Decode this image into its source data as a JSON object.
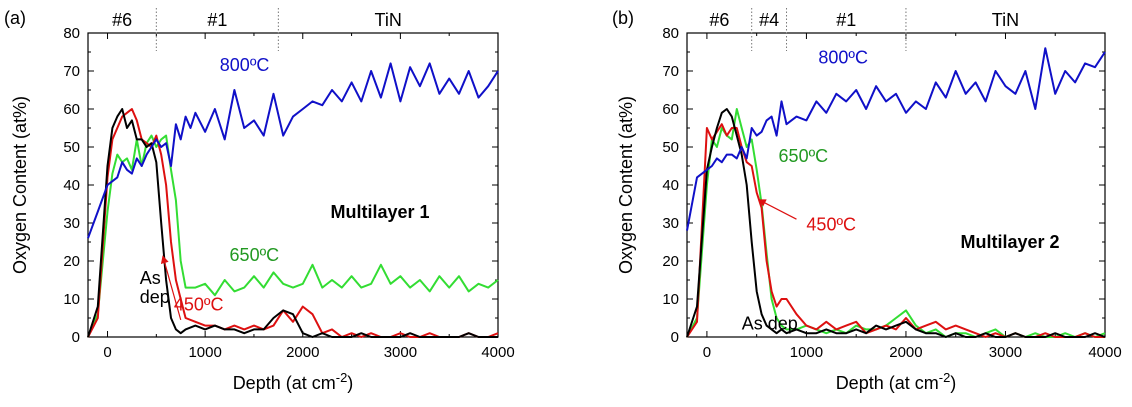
{
  "chart_data": [
    {
      "type": "line",
      "panel_label": "(a)",
      "xlabel": "Depth (at cm",
      "xlabel_sup": "-2",
      "xlabel_close": ")",
      "ylabel": "Oxygen Content (at%)",
      "xlim": [
        -200,
        4000
      ],
      "ylim": [
        0,
        80
      ],
      "xticks": [
        0,
        1000,
        2000,
        3000,
        4000
      ],
      "yticks": [
        0,
        10,
        20,
        30,
        40,
        50,
        60,
        70,
        80
      ],
      "grid": false,
      "sample_label": "Multilayer 1",
      "layers": [
        {
          "label": "#6",
          "from": -200,
          "to": 500
        },
        {
          "label": "#1",
          "from": 500,
          "to": 1750
        },
        {
          "label": "TiN",
          "from": 1750,
          "to": 4000
        }
      ],
      "series": [
        {
          "label": "800ºC",
          "color": "#1010c8",
          "label_x": 1150,
          "label_y": 70,
          "x": [
            -200,
            -100,
            0,
            50,
            100,
            150,
            200,
            250,
            300,
            350,
            400,
            450,
            500,
            550,
            600,
            650,
            700,
            750,
            800,
            850,
            900,
            1000,
            1100,
            1200,
            1300,
            1400,
            1500,
            1600,
            1700,
            1800,
            1900,
            2000,
            2100,
            2200,
            2300,
            2400,
            2500,
            2600,
            2700,
            2800,
            2900,
            3000,
            3100,
            3200,
            3300,
            3400,
            3500,
            3600,
            3700,
            3800,
            3900,
            4000
          ],
          "y": [
            26,
            33,
            40,
            41,
            42,
            46,
            44,
            43,
            47,
            45,
            48,
            50,
            52,
            50,
            51,
            45,
            56,
            52,
            58,
            55,
            59,
            54,
            60,
            52,
            65,
            55,
            57,
            53,
            64,
            53,
            58,
            60,
            62,
            61,
            65,
            62,
            67,
            62,
            70,
            63,
            72,
            62,
            71,
            66,
            72,
            64,
            68,
            64,
            70,
            63,
            66,
            70
          ]
        },
        {
          "label": "650ºC",
          "color": "#33dd33",
          "label_color": "#229922",
          "label_x": 1250,
          "label_y": 20,
          "x": [
            -200,
            -100,
            0,
            50,
            100,
            150,
            200,
            250,
            300,
            350,
            400,
            450,
            500,
            550,
            600,
            650,
            700,
            750,
            800,
            900,
            1000,
            1100,
            1200,
            1300,
            1400,
            1500,
            1600,
            1700,
            1800,
            1900,
            2000,
            2100,
            2200,
            2300,
            2400,
            2500,
            2600,
            2700,
            2800,
            2900,
            3000,
            3100,
            3200,
            3300,
            3400,
            3500,
            3600,
            3700,
            3800,
            3900,
            4000
          ],
          "y": [
            0,
            6,
            33,
            43,
            48,
            46,
            47,
            44,
            52,
            45,
            51,
            53,
            50,
            52,
            53,
            44,
            36,
            20,
            13,
            13,
            14,
            11,
            15,
            12,
            13,
            16,
            13,
            17,
            14,
            13,
            14,
            19,
            13,
            15,
            13,
            16,
            13,
            14,
            19,
            14,
            16,
            13,
            15,
            12,
            16,
            13,
            16,
            12,
            14,
            13,
            15
          ]
        },
        {
          "label": "450ºC",
          "color": "#dd1010",
          "label_x": 680,
          "label_y": 7,
          "x": [
            -200,
            -100,
            0,
            50,
            100,
            150,
            200,
            250,
            300,
            350,
            400,
            450,
            500,
            550,
            600,
            650,
            700,
            750,
            800,
            900,
            1000,
            1100,
            1200,
            1300,
            1400,
            1500,
            1600,
            1700,
            1800,
            1900,
            2000,
            2100,
            2200,
            2300,
            2400,
            2500,
            2600,
            2700,
            2800,
            2900,
            3000,
            3100,
            3200,
            3300,
            3400,
            3500,
            3600,
            3700,
            3800,
            3900,
            4000
          ],
          "y": [
            0,
            5,
            42,
            52,
            55,
            58,
            59,
            60,
            57,
            52,
            51,
            50,
            53,
            48,
            40,
            25,
            15,
            10,
            5,
            4,
            3,
            3,
            2,
            3,
            2,
            3,
            2,
            3,
            7,
            4,
            8,
            6,
            1,
            2,
            0,
            1,
            0,
            1,
            0,
            0,
            1,
            0,
            0,
            1,
            0,
            0,
            0,
            1,
            0,
            0,
            1
          ]
        },
        {
          "label": "As",
          "label2": "dep",
          "color": "#000000",
          "label_x": 330,
          "label_y": 14,
          "label2_y": 9,
          "x": [
            -200,
            -100,
            0,
            50,
            100,
            150,
            200,
            250,
            300,
            350,
            400,
            450,
            500,
            550,
            600,
            650,
            700,
            750,
            800,
            900,
            1000,
            1100,
            1200,
            1300,
            1400,
            1500,
            1600,
            1700,
            1800,
            1900,
            2000,
            2100,
            2200,
            2300,
            2400,
            2500,
            2600,
            2700,
            2800,
            2900,
            3000,
            3100,
            3200,
            3300,
            3400,
            3500,
            3600,
            3700,
            3800,
            3900,
            4000
          ],
          "y": [
            0,
            8,
            45,
            55,
            58,
            60,
            55,
            57,
            52,
            52,
            50,
            51,
            46,
            30,
            15,
            5,
            2,
            1,
            2,
            3,
            2,
            3,
            2,
            2,
            1,
            2,
            2,
            5,
            7,
            6,
            1,
            0,
            1,
            0,
            0,
            0,
            1,
            0,
            0,
            0,
            0,
            1,
            0,
            0,
            0,
            0,
            0,
            1,
            0,
            0,
            0
          ]
        }
      ],
      "annotation_arrow": {
        "from": [
          750,
          4.5
        ],
        "to": [
          570,
          21
        ]
      }
    },
    {
      "type": "line",
      "panel_label": "(b)",
      "xlabel": "Depth (at cm",
      "xlabel_sup": "-2",
      "xlabel_close": ")",
      "ylabel": "Oxygen Content (at%)",
      "xlim": [
        -200,
        4000
      ],
      "ylim": [
        0,
        80
      ],
      "xticks": [
        0,
        1000,
        2000,
        3000,
        4000
      ],
      "yticks": [
        0,
        10,
        20,
        30,
        40,
        50,
        60,
        70,
        80
      ],
      "grid": false,
      "sample_label": "Multilayer 2",
      "layers": [
        {
          "label": "#6",
          "from": -200,
          "to": 450
        },
        {
          "label": "#4",
          "from": 450,
          "to": 800
        },
        {
          "label": "#1",
          "from": 800,
          "to": 2000
        },
        {
          "label": "TiN",
          "from": 2000,
          "to": 4000
        }
      ],
      "series": [
        {
          "label": "800ºC",
          "color": "#1010c8",
          "label_x": 1120,
          "label_y": 72,
          "x": [
            -200,
            -150,
            -100,
            0,
            50,
            100,
            150,
            200,
            250,
            300,
            350,
            400,
            450,
            500,
            550,
            600,
            650,
            700,
            750,
            800,
            900,
            1000,
            1100,
            1200,
            1300,
            1400,
            1500,
            1600,
            1700,
            1800,
            1900,
            2000,
            2100,
            2200,
            2300,
            2400,
            2500,
            2600,
            2700,
            2800,
            2900,
            3000,
            3100,
            3200,
            3300,
            3400,
            3500,
            3600,
            3700,
            3800,
            3900,
            4000
          ],
          "y": [
            28,
            35,
            42,
            44,
            45,
            47,
            46,
            48,
            48,
            47,
            50,
            47,
            55,
            53,
            54,
            57,
            58,
            53,
            62,
            56,
            58,
            57,
            62,
            59,
            64,
            62,
            65,
            60,
            66,
            62,
            64,
            59,
            62,
            60,
            67,
            63,
            70,
            64,
            67,
            62,
            70,
            66,
            64,
            70,
            60,
            76,
            64,
            70,
            67,
            72,
            71,
            75
          ]
        },
        {
          "label": "650ºC",
          "color": "#33dd33",
          "label_color": "#229922",
          "label_x": 720,
          "label_y": 46,
          "x": [
            -200,
            -100,
            0,
            50,
            100,
            150,
            200,
            250,
            300,
            350,
            400,
            450,
            500,
            550,
            600,
            650,
            700,
            750,
            800,
            900,
            1000,
            1100,
            1200,
            1300,
            1400,
            1500,
            1600,
            1700,
            1800,
            1900,
            2000,
            2100,
            2200,
            2300,
            2400,
            2500,
            2600,
            2700,
            2800,
            2900,
            3000,
            3100,
            3200,
            3300,
            3400,
            3500,
            3600,
            3700,
            3800,
            3900,
            4000
          ],
          "y": [
            0,
            5,
            40,
            52,
            50,
            55,
            53,
            52,
            60,
            55,
            50,
            52,
            44,
            35,
            22,
            10,
            5,
            3,
            2,
            2,
            3,
            2,
            1,
            2,
            1,
            3,
            2,
            2,
            3,
            5,
            7,
            3,
            1,
            2,
            0,
            1,
            1,
            0,
            1,
            2,
            0,
            1,
            0,
            1,
            0,
            0,
            1,
            0,
            1,
            0,
            1
          ]
        },
        {
          "label": "450ºC",
          "color": "#dd1010",
          "label_x": 1000,
          "label_y": 28,
          "x": [
            -200,
            -100,
            0,
            50,
            100,
            150,
            200,
            250,
            300,
            350,
            400,
            450,
            500,
            550,
            600,
            650,
            700,
            750,
            800,
            900,
            1000,
            1100,
            1200,
            1300,
            1400,
            1500,
            1600,
            1700,
            1800,
            1900,
            2000,
            2100,
            2200,
            2300,
            2400,
            2500,
            2600,
            2700,
            2800,
            2900,
            3000,
            3100,
            3200,
            3300,
            3400,
            3500,
            3600,
            3700,
            3800,
            3900,
            4000
          ],
          "y": [
            0,
            4,
            55,
            52,
            54,
            56,
            53,
            55,
            55,
            50,
            46,
            45,
            38,
            34,
            20,
            12,
            8,
            10,
            10,
            6,
            3,
            2,
            4,
            2,
            3,
            4,
            1,
            2,
            3,
            2,
            5,
            2,
            3,
            4,
            2,
            3,
            2,
            1,
            0,
            1,
            0,
            1,
            0,
            0,
            1,
            0,
            0,
            0,
            1,
            0,
            0
          ]
        },
        {
          "label": "As dep",
          "color": "#000000",
          "label_x": 350,
          "label_y": 2,
          "x": [
            -200,
            -100,
            0,
            50,
            100,
            150,
            200,
            250,
            300,
            350,
            400,
            450,
            500,
            550,
            600,
            650,
            700,
            750,
            800,
            900,
            1000,
            1100,
            1200,
            1300,
            1400,
            1500,
            1600,
            1700,
            1800,
            1900,
            2000,
            2100,
            2200,
            2300,
            2400,
            2500,
            2600,
            2700,
            2800,
            2900,
            3000,
            3100,
            3200,
            3300,
            3400,
            3500,
            3600,
            3700,
            3800,
            3900,
            4000
          ],
          "y": [
            0,
            8,
            44,
            50,
            55,
            59,
            60,
            58,
            53,
            48,
            40,
            25,
            12,
            6,
            3,
            2,
            1,
            2,
            1,
            2,
            1,
            1,
            2,
            1,
            1,
            2,
            1,
            3,
            2,
            3,
            4,
            2,
            1,
            1,
            0,
            1,
            0,
            0,
            1,
            0,
            0,
            1,
            0,
            0,
            0,
            1,
            0,
            0,
            0,
            1,
            0
          ]
        }
      ],
      "annotation_arrow": {
        "from": [
          900,
          31
        ],
        "to": [
          530,
          36
        ]
      }
    }
  ]
}
